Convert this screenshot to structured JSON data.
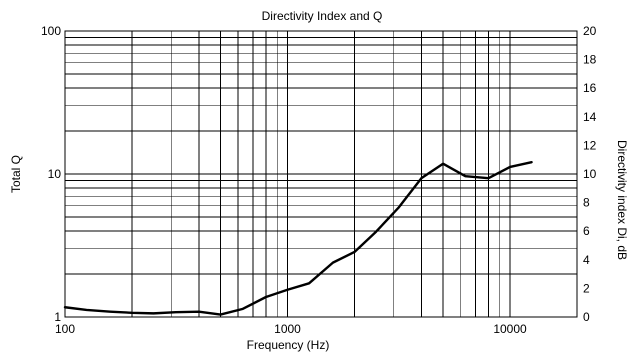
{
  "chart_data": {
    "type": "line",
    "title": "Directivity Index and Q",
    "xlabel": "Frequency (Hz)",
    "ylabel_left": "Total Q",
    "ylabel_right": "Directivity index Di, dB",
    "x_scale": "log",
    "y_scale_left": "log",
    "xlim": [
      100,
      20000
    ],
    "ylim_left": [
      1,
      100
    ],
    "ylim_right": [
      0,
      20
    ],
    "grid": true,
    "x_ticks": [
      {
        "value": 100,
        "label": "100"
      },
      {
        "value": 1000,
        "label": "1000"
      },
      {
        "value": 10000,
        "label": "10000"
      }
    ],
    "y_left_ticks": [
      {
        "value": 1,
        "label": "1"
      },
      {
        "value": 10,
        "label": "10"
      },
      {
        "value": 100,
        "label": "100"
      }
    ],
    "y_right_ticks": [
      {
        "value": 0,
        "label": "0"
      },
      {
        "value": 2,
        "label": "2"
      },
      {
        "value": 4,
        "label": "4"
      },
      {
        "value": 6,
        "label": "6"
      },
      {
        "value": 8,
        "label": "8"
      },
      {
        "value": 10,
        "label": "10"
      },
      {
        "value": 12,
        "label": "12"
      },
      {
        "value": 14,
        "label": "14"
      },
      {
        "value": 16,
        "label": "16"
      },
      {
        "value": 18,
        "label": "18"
      },
      {
        "value": 20,
        "label": "20"
      }
    ],
    "series": [
      {
        "x": [
          100,
          125,
          160,
          200,
          250,
          315,
          400,
          500,
          630,
          800,
          1000,
          1250,
          1600,
          2000,
          2500,
          3150,
          4000,
          5000,
          6300,
          8000,
          10000,
          12500
        ],
        "y": [
          1.17,
          1.12,
          1.09,
          1.07,
          1.06,
          1.08,
          1.09,
          1.04,
          1.14,
          1.38,
          1.55,
          1.72,
          2.4,
          2.85,
          3.95,
          5.8,
          9.35,
          11.8,
          9.65,
          9.35,
          11.2,
          12.1
        ]
      }
    ]
  }
}
